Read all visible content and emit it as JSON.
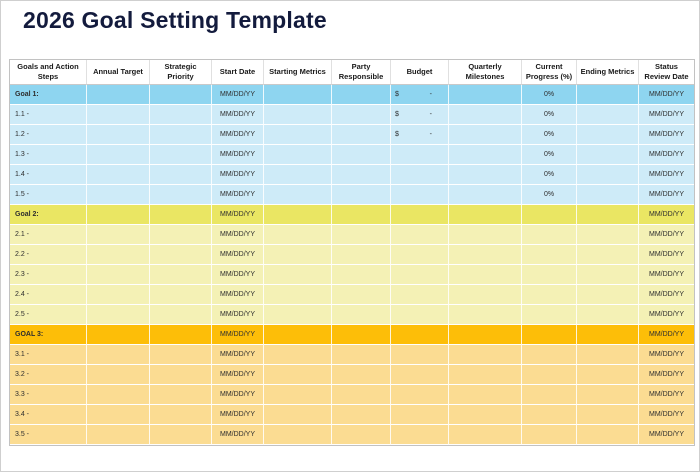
{
  "page": {
    "title": "2026 Goal Setting Template"
  },
  "colors": {
    "title_text": "#131B3D",
    "goal1_header": "#8ED5F0",
    "goal1_row": "#CEEBF8",
    "goal2_header": "#EAE663",
    "goal2_row": "#F4F1B5",
    "goal3_header": "#FDBE08",
    "goal3_row": "#FBDC92"
  },
  "table": {
    "columns": [
      "Goals and Action Steps",
      "Annual Target",
      "Strategic Priority",
      "Start Date",
      "Starting Metrics",
      "Party Responsible",
      "Budget",
      "Quarterly Milestones",
      "Current Progress (%)",
      "Ending Metrics",
      "Status Review Date"
    ],
    "sections": [
      {
        "name": "goal-1",
        "header_bg": "#8ED5F0",
        "row_bg": "#CEEBF8",
        "header": {
          "label": "Goal 1:",
          "start_date": "MM/DD/YY",
          "budget_symbol": "$",
          "budget_amount": "-",
          "progress": "0%",
          "review_date": "MM/DD/YY"
        },
        "rows": [
          {
            "label": "1.1 -",
            "start_date": "MM/DD/YY",
            "budget_symbol": "$",
            "budget_amount": "-",
            "progress": "0%",
            "review_date": "MM/DD/YY"
          },
          {
            "label": "1.2 -",
            "start_date": "MM/DD/YY",
            "budget_symbol": "$",
            "budget_amount": "-",
            "progress": "0%",
            "review_date": "MM/DD/YY"
          },
          {
            "label": "1.3 -",
            "start_date": "MM/DD/YY",
            "budget_symbol": "",
            "budget_amount": "",
            "progress": "0%",
            "review_date": "MM/DD/YY"
          },
          {
            "label": "1.4 -",
            "start_date": "MM/DD/YY",
            "budget_symbol": "",
            "budget_amount": "",
            "progress": "0%",
            "review_date": "MM/DD/YY"
          },
          {
            "label": "1.5 -",
            "start_date": "MM/DD/YY",
            "budget_symbol": "",
            "budget_amount": "",
            "progress": "0%",
            "review_date": "MM/DD/YY"
          }
        ]
      },
      {
        "name": "goal-2",
        "header_bg": "#EAE663",
        "row_bg": "#F4F1B5",
        "header": {
          "label": "Goal 2:",
          "start_date": "MM/DD/YY",
          "budget_symbol": "",
          "budget_amount": "",
          "progress": "",
          "review_date": "MM/DD/YY"
        },
        "rows": [
          {
            "label": "2.1 -",
            "start_date": "MM/DD/YY",
            "budget_symbol": "",
            "budget_amount": "",
            "progress": "",
            "review_date": "MM/DD/YY"
          },
          {
            "label": "2.2 -",
            "start_date": "MM/DD/YY",
            "budget_symbol": "",
            "budget_amount": "",
            "progress": "",
            "review_date": "MM/DD/YY"
          },
          {
            "label": "2.3 -",
            "start_date": "MM/DD/YY",
            "budget_symbol": "",
            "budget_amount": "",
            "progress": "",
            "review_date": "MM/DD/YY"
          },
          {
            "label": "2.4 -",
            "start_date": "MM/DD/YY",
            "budget_symbol": "",
            "budget_amount": "",
            "progress": "",
            "review_date": "MM/DD/YY"
          },
          {
            "label": "2.5 -",
            "start_date": "MM/DD/YY",
            "budget_symbol": "",
            "budget_amount": "",
            "progress": "",
            "review_date": "MM/DD/YY"
          }
        ]
      },
      {
        "name": "goal-3",
        "header_bg": "#FDBE08",
        "row_bg": "#FBDC92",
        "header": {
          "label": "GOAL 3:",
          "start_date": "MM/DD/YY",
          "budget_symbol": "",
          "budget_amount": "",
          "progress": "",
          "review_date": "MM/DD/YY"
        },
        "rows": [
          {
            "label": "3.1 -",
            "start_date": "MM/DD/YY",
            "budget_symbol": "",
            "budget_amount": "",
            "progress": "",
            "review_date": "MM/DD/YY"
          },
          {
            "label": "3.2 -",
            "start_date": "MM/DD/YY",
            "budget_symbol": "",
            "budget_amount": "",
            "progress": "",
            "review_date": "MM/DD/YY"
          },
          {
            "label": "3.3 -",
            "start_date": "MM/DD/YY",
            "budget_symbol": "",
            "budget_amount": "",
            "progress": "",
            "review_date": "MM/DD/YY"
          },
          {
            "label": "3.4 -",
            "start_date": "MM/DD/YY",
            "budget_symbol": "",
            "budget_amount": "",
            "progress": "",
            "review_date": "MM/DD/YY"
          },
          {
            "label": "3.5 -",
            "start_date": "MM/DD/YY",
            "budget_symbol": "",
            "budget_amount": "",
            "progress": "",
            "review_date": "MM/DD/YY"
          }
        ]
      }
    ]
  }
}
